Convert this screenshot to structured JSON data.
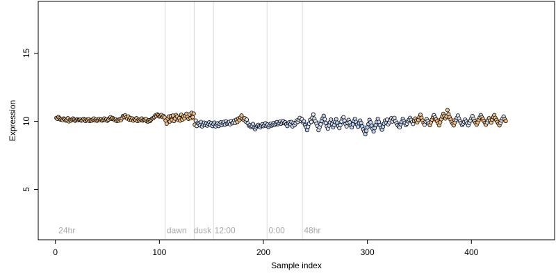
{
  "chart_data": {
    "type": "scatter",
    "xlabel": "Sample index",
    "ylabel": "Expression",
    "xlim": [
      -16.5,
      480
    ],
    "ylim": [
      1.3,
      18.8
    ],
    "x_ticks": [
      0,
      100,
      200,
      300,
      400
    ],
    "y_ticks": [
      5,
      10,
      15
    ],
    "grid": false,
    "legend": "none",
    "phase_lines": [
      105.5,
      133.5,
      152,
      203.5,
      237.5
    ],
    "phase_labels": [
      {
        "x": 3,
        "label": "24hr"
      },
      {
        "x": 107,
        "label": "dawn"
      },
      {
        "x": 133,
        "label": "dusk"
      },
      {
        "x": 153,
        "label": "12:00"
      },
      {
        "x": 205,
        "label": "0:00"
      },
      {
        "x": 239,
        "label": "48hr"
      }
    ],
    "phase_label_y": 2,
    "colors": {
      "point_edge": "#000000",
      "point_fill_light": "#dde6f5",
      "point_fill_orange": "#f2c28d",
      "point_fill_blue": "#c2d5f2",
      "line_orange": "#e8a05a",
      "line_blue": "#8fb4e8",
      "phase_line": "#d9d9d9",
      "phase_label": "#a8a8a8",
      "axis": "#000000"
    },
    "series": [
      {
        "x_start": 1,
        "y": [
          10.24,
          10.18,
          10.31,
          10.22,
          10.12,
          10.15,
          10.08,
          10.2,
          10.14,
          10.05,
          10.1,
          10.22,
          9.99,
          10.1,
          10.05,
          10.14,
          10.2,
          10.12,
          10.04,
          10.1,
          10.15,
          10.08,
          10.11,
          10.12,
          10.05,
          10.08,
          10.18,
          10.11,
          10.02,
          10.12,
          10.08,
          10.16,
          10.02,
          10.09,
          10.05,
          10.14,
          10.2,
          10.06,
          10.12,
          10.04,
          10.1,
          10.18,
          10.08,
          10.14,
          10.05,
          10.12,
          10.2,
          10.09,
          10.14,
          10.04,
          10.12,
          10.22,
          10.3,
          10.18,
          10.24,
          10.15,
          10.08,
          10.12,
          10.02,
          10.1,
          10.05,
          10.15,
          10.08,
          10.22,
          10.38,
          10.31,
          10.44,
          10.28,
          10.2,
          10.35,
          10.12,
          10.24,
          10.1,
          10.2,
          10.05,
          10.15,
          10.1,
          10.22,
          10.02,
          10.12,
          10.06,
          10.14,
          10.2,
          10.05,
          10.12,
          10.1,
          10.18,
          10.0,
          9.98,
          10.08,
          10.02,
          10.12,
          10.2,
          10.22,
          10.3,
          10.42,
          10.38,
          10.5,
          10.44,
          10.35,
          10.4,
          10.46,
          10.31,
          10.38,
          10.28,
          10.05,
          9.82,
          10.2,
          10.35,
          9.98,
          10.38,
          10.1,
          10.42,
          10.02,
          10.2,
          10.46,
          10.35,
          10.1,
          10.22,
          10.05,
          10.48,
          10.12,
          10.35,
          10.2,
          10.42,
          10.55,
          10.32,
          10.18,
          10.5,
          10.22,
          10.62,
          10.3,
          10.56,
          9.75,
          10.05,
          9.65,
          9.88,
          9.8,
          9.7,
          9.95,
          9.62,
          9.78,
          9.9,
          9.72,
          9.85,
          9.68,
          9.82,
          9.92,
          9.75,
          9.88,
          9.65,
          9.8,
          9.9,
          9.62,
          9.78,
          9.85,
          9.65,
          9.8,
          9.92,
          9.72,
          9.85,
          9.95,
          9.75,
          10.0,
          9.82,
          9.88,
          9.95,
          9.78,
          10.02,
          9.85,
          9.92,
          10.05,
          9.88,
          10.12,
          9.95,
          10.2,
          10.08,
          10.28,
          10.42,
          10.18,
          10.1,
          10.22,
          9.98,
          10.12,
          9.85,
          9.68,
          9.72,
          9.58,
          9.65,
          9.8,
          9.52,
          9.42,
          9.55,
          9.66,
          9.74,
          9.62,
          9.55,
          9.68,
          9.78,
          9.64,
          9.72,
          9.85,
          9.66,
          9.76,
          9.58,
          9.7,
          9.82,
          9.68,
          9.75,
          9.88,
          9.74,
          9.82,
          9.94,
          9.78,
          9.86,
          9.98,
          9.82,
          9.9,
          10.02,
          9.86,
          9.92,
          9.78,
          9.65,
          9.85,
          9.92,
          9.78,
          9.95,
          9.62,
          9.88,
          9.72,
          9.85,
          10.05,
          9.95,
          10.1,
          10.25,
          10.02,
          10.15,
          9.92,
          10.0,
          9.72,
          9.58,
          9.35,
          9.6,
          9.82,
          10.1,
          9.95,
          10.25,
          10.5,
          10.2,
          10.0,
          9.82,
          9.65,
          9.35,
          9.55,
          9.78,
          10.02,
          10.22,
          10.4,
          10.15,
          9.88,
          9.62,
          9.45,
          9.68,
          9.92,
          10.12,
          9.8,
          9.55,
          9.72,
          9.95,
          10.15,
          9.9,
          9.65,
          9.5,
          9.72,
          9.98,
          10.2,
          10.3,
          10.05,
          9.8,
          9.62,
          9.88,
          10.1,
          9.92,
          9.7,
          9.55,
          9.78,
          10.02,
          10.18,
          9.95,
          9.75,
          9.6,
          9.85,
          10.05,
          9.88,
          9.62,
          9.4,
          9.25,
          9.05,
          9.3,
          9.55,
          9.8,
          10.1,
          9.92,
          9.68,
          9.45,
          9.25,
          9.5,
          9.72,
          9.95,
          10.18,
          9.95,
          9.72,
          9.52,
          9.38,
          9.6,
          9.82,
          10.05,
          9.88,
          10.12,
          9.78,
          9.92,
          10.08,
          10.22,
          9.98,
          10.15,
          10.25,
          10.0,
          9.85,
          9.72,
          9.62,
          9.55,
          9.78,
          9.95,
          10.18,
          10.02,
          9.88,
          9.72,
          9.82,
          10.0,
          10.12,
          10.25,
          10.1,
          9.95,
          9.8,
          10.02,
          10.2,
          10.05,
          9.92,
          10.1,
          10.3,
          10.48,
          10.25,
          10.05,
          9.88,
          9.75,
          9.98,
          10.15,
          10.02,
          9.85,
          9.72,
          9.92,
          10.12,
          10.3,
          10.45,
          10.28,
          10.15,
          10.0,
          9.85,
          9.7,
          9.92,
          10.15,
          10.35,
          10.55,
          10.4,
          10.2,
          10.35,
          10.82,
          10.52,
          10.3,
          10.12,
          9.95,
          9.82,
          9.7,
          9.9,
          10.1,
          10.25,
          10.42,
          10.2,
          10.02,
          9.88,
          9.72,
          9.82,
          9.95,
          10.12,
          9.98,
          9.85,
          9.7,
          9.88,
          10.05,
          10.22,
          10.38,
          10.18,
          10.02,
          9.88,
          9.75,
          9.92,
          10.1,
          10.28,
          10.45,
          10.3,
          10.18,
          10.02,
          9.88,
          9.75,
          9.92,
          10.08,
          10.22,
          10.05,
          9.9,
          10.12,
          10.3,
          10.45,
          10.25,
          10.1,
          9.95,
          9.82,
          9.7,
          9.88,
          10.05,
          10.2,
          10.35,
          10.15,
          10.02
        ]
      }
    ]
  }
}
